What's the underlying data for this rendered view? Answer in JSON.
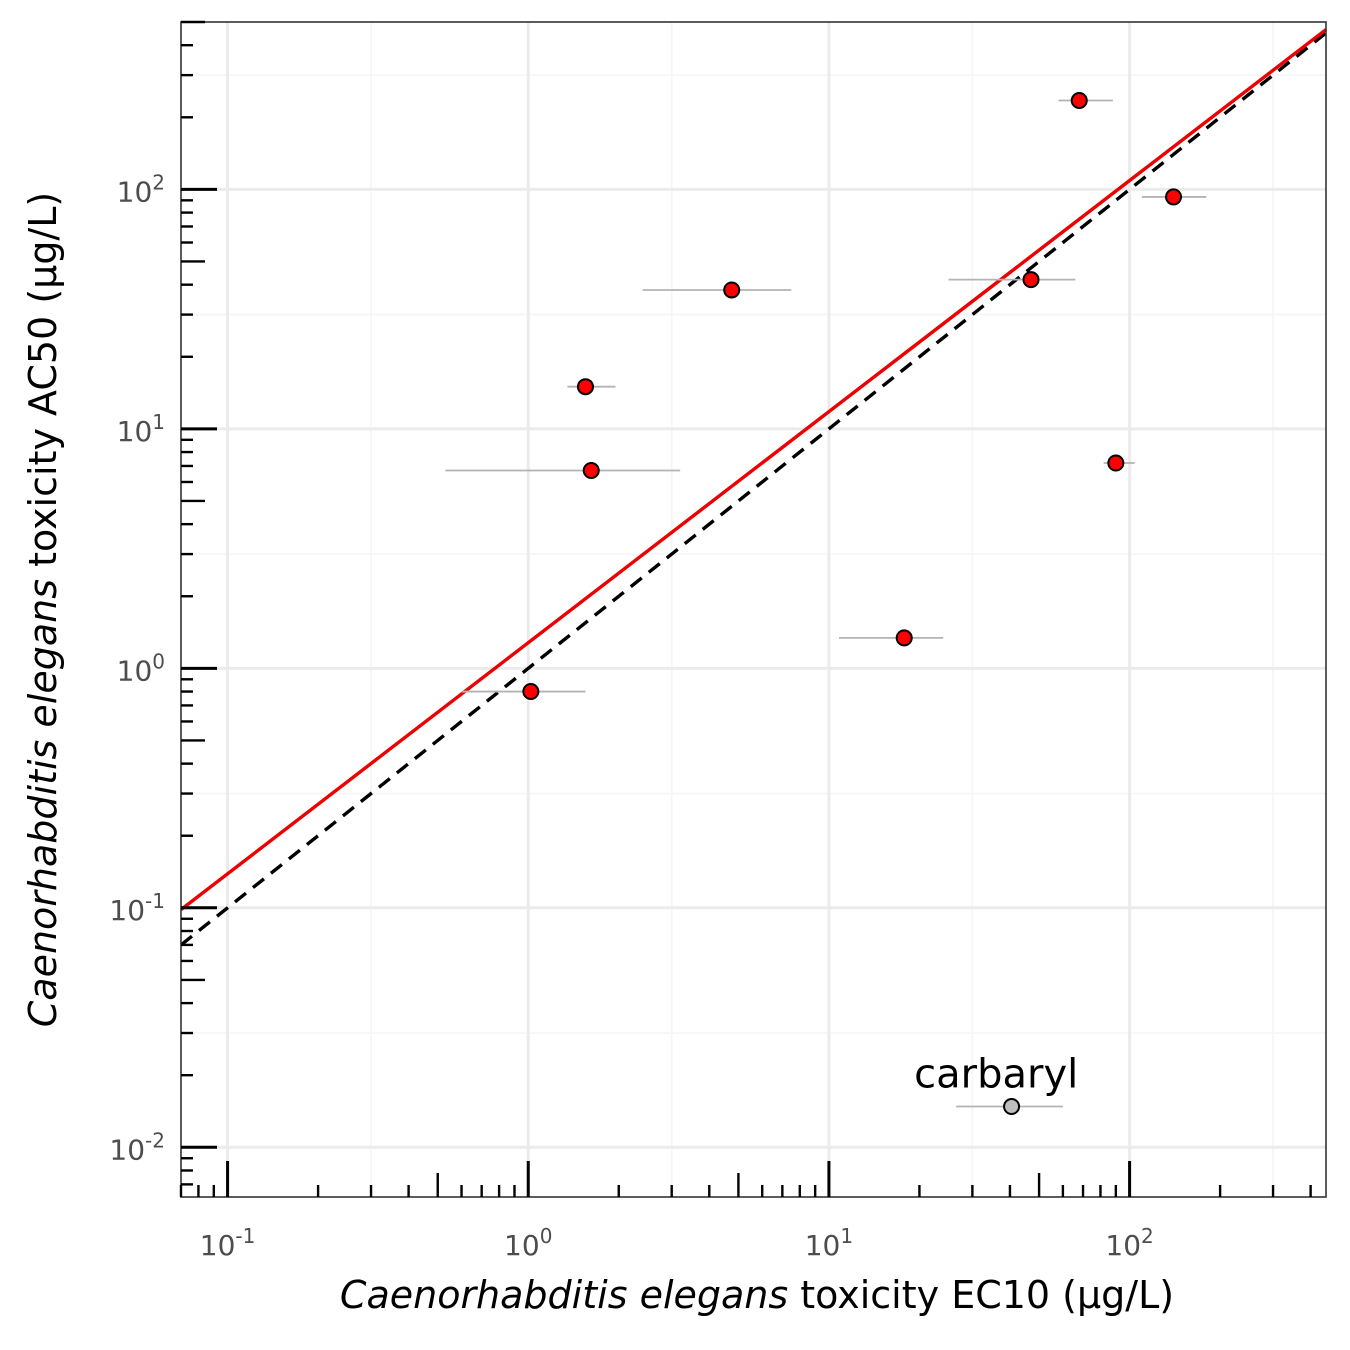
{
  "chart_data": {
    "type": "scatter",
    "xscale": "log10",
    "yscale": "log10",
    "xlim": [
      0.07,
      450
    ],
    "ylim": [
      0.0062,
      500
    ],
    "x_ticks": [
      {
        "value": 0.1,
        "base": "10",
        "exp": "-1"
      },
      {
        "value": 1,
        "base": "10",
        "exp": "0"
      },
      {
        "value": 10,
        "base": "10",
        "exp": "1"
      },
      {
        "value": 100,
        "base": "10",
        "exp": "2"
      }
    ],
    "y_ticks": [
      {
        "value": 0.01,
        "base": "10",
        "exp": "-2"
      },
      {
        "value": 0.1,
        "base": "10",
        "exp": "-1"
      },
      {
        "value": 1,
        "base": "10",
        "exp": "0"
      },
      {
        "value": 10,
        "base": "10",
        "exp": "1"
      },
      {
        "value": 100,
        "base": "10",
        "exp": "2"
      }
    ],
    "xlabel": {
      "italic": "Caenorhabditis elegans",
      "rest": " toxicity EC10 (µg/L)"
    },
    "ylabel": {
      "italic": "Caenorhabditis elegans",
      "rest": " toxicity AC50 (µg/L)"
    },
    "grid": true,
    "points": [
      {
        "x": 1.02,
        "y": 0.8,
        "xmin": 0.6,
        "xmax": 1.55,
        "highlight": true
      },
      {
        "x": 1.55,
        "y": 15,
        "xmin": 1.35,
        "xmax": 1.95,
        "highlight": true
      },
      {
        "x": 1.62,
        "y": 6.7,
        "xmin": 0.53,
        "xmax": 3.2,
        "highlight": true
      },
      {
        "x": 4.75,
        "y": 38,
        "xmin": 2.4,
        "xmax": 7.5,
        "highlight": true
      },
      {
        "x": 17.8,
        "y": 1.34,
        "xmin": 10.8,
        "xmax": 24,
        "highlight": true
      },
      {
        "x": 47,
        "y": 42,
        "xmin": 25,
        "xmax": 66,
        "highlight": true
      },
      {
        "x": 68,
        "y": 235,
        "xmin": 58,
        "xmax": 88,
        "highlight": true
      },
      {
        "x": 90,
        "y": 7.2,
        "xmin": 82,
        "xmax": 104,
        "highlight": true
      },
      {
        "x": 140,
        "y": 93,
        "xmin": 110,
        "xmax": 180,
        "highlight": true
      },
      {
        "x": 40.5,
        "y": 0.0148,
        "xmin": 26.5,
        "xmax": 60,
        "highlight": false
      }
    ],
    "annotations": [
      {
        "text": "carbaryl",
        "x": 36,
        "y": 0.0178
      }
    ],
    "lines": [
      {
        "name": "identity",
        "style": "dashed",
        "color": "#000000",
        "intercept_log": 0,
        "slope": 1
      },
      {
        "name": "fit",
        "style": "solid",
        "color": "#ee0000",
        "intercept_log": 0.107,
        "slope": 0.965
      }
    ],
    "colors": {
      "point_fill": "#ff0000",
      "point_fill_muted": "#bebebe",
      "point_stroke": "#000000",
      "errorbar": "#b3b3b3",
      "grid_major": "#ebebeb",
      "grid_minor": "#f5f5f5",
      "panel_border": "#333333"
    }
  }
}
